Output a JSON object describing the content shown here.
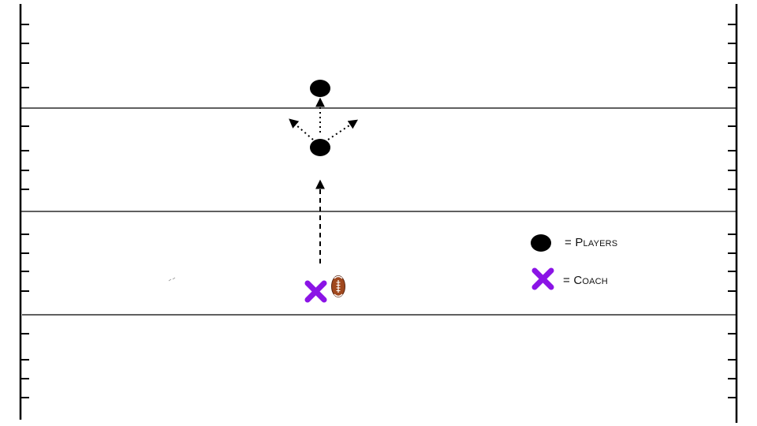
{
  "legend": {
    "players_label": "= Players",
    "coach_label": "= Coach"
  },
  "icons": {
    "player": "player-icon",
    "coach": "coach-x-icon",
    "ball": "football-icon"
  },
  "colors": {
    "player": "#000000",
    "coach": "#8b14e6",
    "ball": "#a0481e",
    "lines": "#000000"
  }
}
